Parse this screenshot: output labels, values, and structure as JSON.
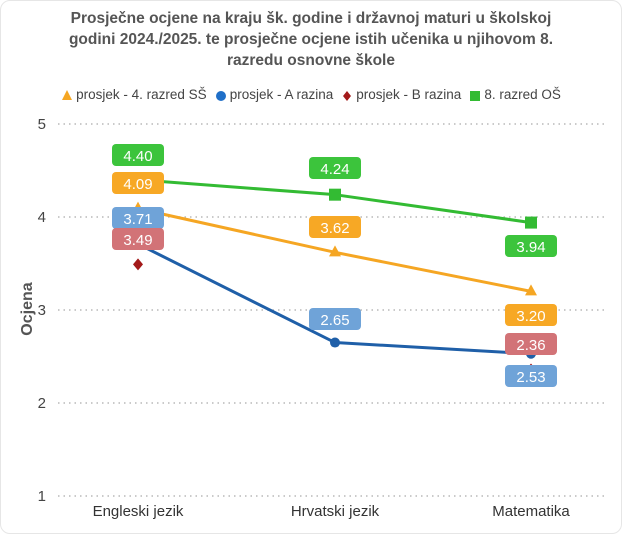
{
  "chart_data": {
    "type": "line",
    "title": "Prosječne ocjene na kraju šk. godine i državnoj maturi u školskoj godini 2024./2025. te prosječne ocjene istih učenika u njihovom 8. razredu osnovne škole",
    "title_lines": [
      "Prosječne ocjene na kraju šk. godine i državnoj maturi u školskoj",
      "godini 2024./2025. te prosječne ocjene istih učenika u njihovom 8.",
      "razredu osnovne škole"
    ],
    "xlabel": "",
    "ylabel": "Ocjena",
    "ylim": [
      1,
      5
    ],
    "yticks": [
      1,
      2,
      3,
      4,
      5
    ],
    "grid": true,
    "legend_position": "top",
    "categories": [
      "Engleski jezik",
      "Hrvatski jezik",
      "Matematika"
    ],
    "series": [
      {
        "name": "prosjek - 4. razred SŠ",
        "marker": "triangle",
        "color": "#f5a623",
        "label_color": "#f7a825",
        "line": true,
        "values": [
          4.09,
          3.62,
          3.2
        ],
        "labels": [
          "4.09",
          "3.62",
          "3.20"
        ],
        "label_pos": [
          "above",
          "above",
          "below"
        ]
      },
      {
        "name": "prosjek - A razina",
        "marker": "circle",
        "color": "#1f5fa8",
        "label_color": "#6fa3d8",
        "line": true,
        "values": [
          3.71,
          2.65,
          2.53
        ],
        "labels": [
          "3.71",
          "2.65",
          "2.53"
        ],
        "label_pos": [
          "above",
          "above",
          "below"
        ]
      },
      {
        "name": "prosjek - B razina",
        "marker": "diamond",
        "color": "#a31a1a",
        "label_color": "#d27377",
        "line": false,
        "values": [
          3.49,
          null,
          2.36
        ],
        "labels": [
          "3.49",
          "",
          "2.36"
        ],
        "label_pos": [
          "above",
          "above",
          "above"
        ]
      },
      {
        "name": "8. razred OŠ",
        "marker": "square",
        "color": "#33bb33",
        "label_color": "#3cc43c",
        "line": true,
        "values": [
          4.4,
          4.24,
          3.94
        ],
        "labels": [
          "4.40",
          "4.24",
          "3.94"
        ],
        "label_pos": [
          "above",
          "above",
          "below"
        ]
      }
    ]
  }
}
